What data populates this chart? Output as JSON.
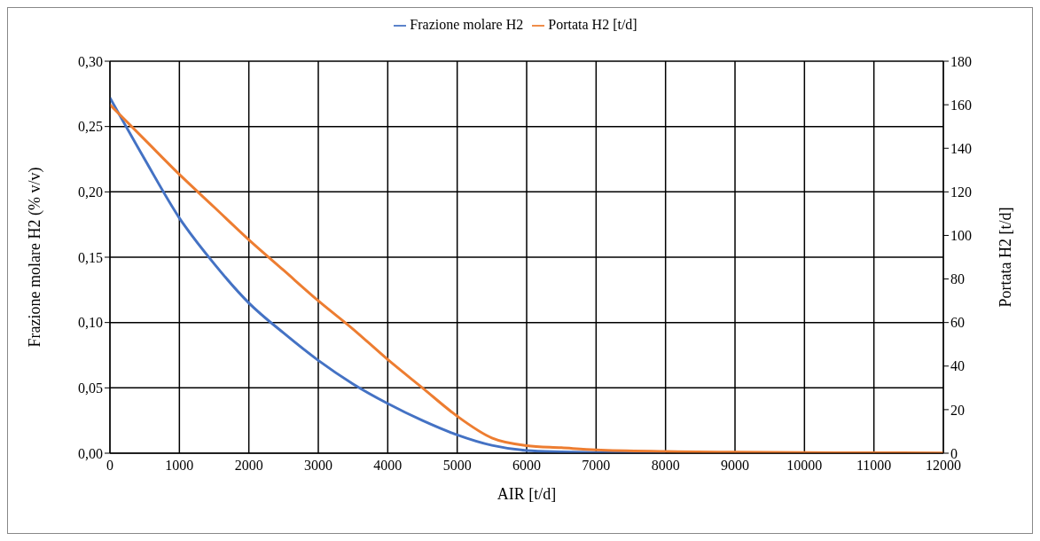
{
  "chart_data": {
    "type": "line",
    "xlabel": "AIR [t/d]",
    "ylabel": "Frazione molare H2 (% v/v)",
    "y2label": "Portata H2 [t/d]",
    "x": [
      0,
      500,
      1000,
      1500,
      2000,
      2500,
      3000,
      3500,
      4000,
      4500,
      5000,
      5500,
      6000,
      6500,
      7000,
      8000,
      9000,
      10000,
      11000,
      12000
    ],
    "series": [
      {
        "name": "Frazione molare H2",
        "color": "#4472c4",
        "values": [
          0.272,
          0.225,
          0.18,
          0.145,
          0.115,
          0.092,
          0.071,
          0.053,
          0.038,
          0.025,
          0.014,
          0.006,
          0.002,
          0.001,
          0.0005,
          0,
          null,
          null,
          null,
          null
        ]
      },
      {
        "name": "Portata H2 [t/d]",
        "color": "#ed7d31",
        "axis": "y2",
        "values": [
          160,
          144,
          128,
          113,
          98,
          84,
          70,
          57,
          43,
          30,
          17,
          7,
          3.5,
          2.5,
          1.5,
          0.8,
          0.5,
          0.3,
          0.2,
          0.1
        ]
      }
    ],
    "xlim": [
      0,
      12000
    ],
    "xticks": [
      0,
      1000,
      2000,
      3000,
      4000,
      5000,
      6000,
      7000,
      8000,
      9000,
      10000,
      11000,
      12000
    ],
    "ylim": [
      0,
      0.3
    ],
    "yticks": [
      {
        "value": 0,
        "label": "0,00"
      },
      {
        "value": 0.05,
        "label": "0,05"
      },
      {
        "value": 0.1,
        "label": "0,10"
      },
      {
        "value": 0.15,
        "label": "0,15"
      },
      {
        "value": 0.2,
        "label": "0,20"
      },
      {
        "value": 0.25,
        "label": "0,25"
      },
      {
        "value": 0.3,
        "label": "0,30"
      }
    ],
    "y2lim": [
      0,
      180
    ],
    "y2ticks": [
      0,
      20,
      40,
      60,
      80,
      100,
      120,
      140,
      160,
      180
    ],
    "grid": true,
    "legend": "top",
    "marker": "none",
    "line_style": "solid"
  }
}
